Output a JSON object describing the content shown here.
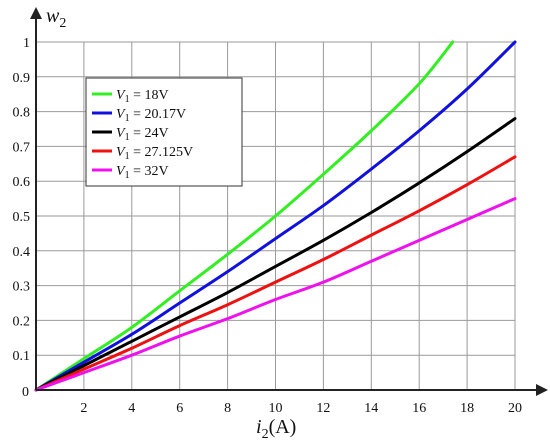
{
  "chart_data": {
    "type": "line",
    "ylabel_main": "w",
    "ylabel_sub": "2",
    "xlabel_main": "i",
    "xlabel_sub": "2",
    "xlabel_unit": "(A)",
    "xlim": [
      0,
      20
    ],
    "ylim": [
      0,
      1
    ],
    "origin_label": "0",
    "xticks": [
      2,
      4,
      6,
      8,
      10,
      12,
      14,
      16,
      18,
      20
    ],
    "yticks": [
      0.1,
      0.2,
      0.3,
      0.4,
      0.5,
      0.6,
      0.7,
      0.8,
      0.9,
      1
    ],
    "grid": true,
    "legend_position": "top-left",
    "series": [
      {
        "legend_var": "V",
        "legend_sub": "1",
        "legend_value": " = 18V",
        "color": "#33ee22",
        "x": [
          0,
          2,
          4,
          6,
          8,
          10,
          12,
          14,
          16,
          17.4
        ],
        "y": [
          0,
          0.09,
          0.18,
          0.285,
          0.39,
          0.5,
          0.62,
          0.745,
          0.88,
          1.0
        ]
      },
      {
        "legend_var": "V",
        "legend_sub": "1",
        "legend_value": " = 20.17V",
        "color": "#1111dd",
        "x": [
          0,
          2,
          4,
          6,
          8,
          10,
          12,
          14,
          16,
          18,
          20
        ],
        "y": [
          0,
          0.08,
          0.16,
          0.25,
          0.34,
          0.435,
          0.53,
          0.635,
          0.745,
          0.865,
          1.0
        ]
      },
      {
        "legend_var": "V",
        "legend_sub": "1",
        "legend_value": " = 24V",
        "color": "#000000",
        "x": [
          0,
          2,
          4,
          6,
          8,
          10,
          12,
          14,
          16,
          18,
          20
        ],
        "y": [
          0,
          0.07,
          0.14,
          0.21,
          0.28,
          0.355,
          0.43,
          0.51,
          0.595,
          0.685,
          0.78
        ]
      },
      {
        "legend_var": "V",
        "legend_sub": "1",
        "legend_value": " = 27.125V",
        "color": "#ee1111",
        "x": [
          0,
          2,
          4,
          6,
          8,
          10,
          12,
          14,
          16,
          18,
          20
        ],
        "y": [
          0,
          0.06,
          0.12,
          0.185,
          0.245,
          0.31,
          0.375,
          0.445,
          0.515,
          0.59,
          0.67
        ]
      },
      {
        "legend_var": "V",
        "legend_sub": "1",
        "legend_value": " = 32V",
        "color": "#ee11ee",
        "x": [
          0,
          2,
          4,
          6,
          8,
          10,
          12,
          14,
          16,
          18,
          20
        ],
        "y": [
          0,
          0.05,
          0.1,
          0.155,
          0.205,
          0.26,
          0.31,
          0.37,
          0.43,
          0.49,
          0.55
        ]
      }
    ]
  }
}
